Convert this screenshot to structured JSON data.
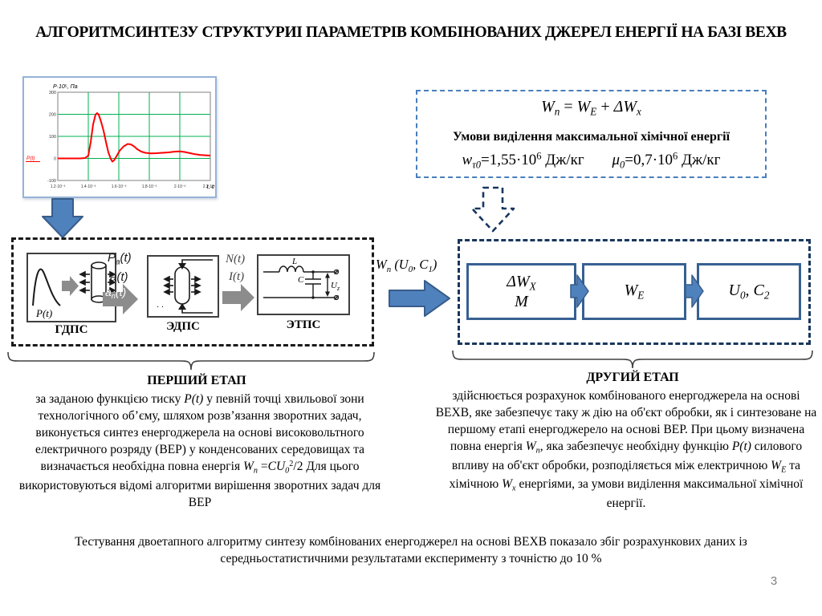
{
  "slide": {
    "title": "АЛГОРИТМСИНТЕЗУ СТРУКТУРИІ ПАРАМЕТРІВ  КОМБІНОВАНИХ ДЖЕРЕЛ ЕНЕРГІЇ НА БАЗІ ВЕХВ",
    "footer": "Тестування двоетапного алгоритму синтезу комбінованих енергоджерел на основі ВЕХВ показало збіг розрахункових даних із середньостатистичними результатами експерименту з точністю до 10 %",
    "page_number": "3"
  },
  "chart_data": {
    "type": "line",
    "title": "",
    "ylabel": "P·10⁵, Па",
    "xlabel": "t, с",
    "x_unit": "10⁻³ с",
    "y_unit": "10⁵ Па",
    "xlim": [
      1.2,
      2.2
    ],
    "ylim": [
      -100,
      300
    ],
    "grid": true,
    "grid_color": "#00B050",
    "xticklabels": [
      "1.2·10⁻³",
      "1.4·10⁻³",
      "1.6·10⁻³",
      "1.8·10⁻³",
      "2·10⁻³",
      "2.2·10⁻³"
    ],
    "yticklabels": [
      "300",
      "200",
      "100",
      "0",
      "-100"
    ],
    "annotation": "P(t)",
    "series": [
      {
        "name": "P(t)",
        "color": "#FF0000",
        "x": [
          1.2,
          1.38,
          1.42,
          1.46,
          1.5,
          1.56,
          1.6,
          1.66,
          1.72,
          1.78,
          1.9,
          1.98,
          2.1,
          2.2
        ],
        "y": [
          0,
          0,
          150,
          205,
          120,
          -15,
          30,
          65,
          40,
          25,
          22,
          30,
          18,
          15
        ]
      }
    ]
  },
  "formula_box": {
    "formula_runs": [
      {
        "t": "W",
        "i": true
      },
      {
        "t": "n",
        "s": "sub",
        "i": true
      },
      {
        "t": " = "
      },
      {
        "t": "W",
        "i": true
      },
      {
        "t": "E",
        "s": "sub",
        "i": true
      },
      {
        "t": " + "
      },
      {
        "t": "ΔW",
        "i": true
      },
      {
        "t": "x",
        "s": "sub",
        "i": true
      }
    ],
    "condition_title": "Умови виділення максимальної хімічної енергії",
    "value1_runs": [
      {
        "t": "w",
        "i": true
      },
      {
        "t": "τ0",
        "s": "sub",
        "i": true
      },
      {
        "t": "=1,55·10"
      },
      {
        "t": "6",
        "s": "sup"
      },
      {
        "t": " Дж/кг"
      }
    ],
    "value2_runs": [
      {
        "t": "μ",
        "i": true
      },
      {
        "t": "0",
        "s": "sub",
        "i": true
      },
      {
        "t": "=0,7·10"
      },
      {
        "t": "6",
        "s": "sup"
      },
      {
        "t": " Дж/кг"
      }
    ]
  },
  "stage1": {
    "heading": "ПЕРШИЙ ЕТАП",
    "paragraph_runs": [
      {
        "t": "за заданою функцією тиску  "
      },
      {
        "t": "P(t)",
        "i": true
      },
      {
        "t": " у певній точці хвильової зони технологічного об’єму, шляхом розв’язання зворотних задач, виконується синтез енергоджерела на основі високовольтного електричного розряду (ВЕР) у конденсованих середовищах та визначається необхідна повна енергія  "
      },
      {
        "t": "W",
        "i": true
      },
      {
        "t": "n",
        "s": "sub",
        "i": true
      },
      {
        "t": " ="
      },
      {
        "t": "CU",
        "i": true
      },
      {
        "t": "0",
        "s": "sub",
        "i": true
      },
      {
        "t": "2",
        "s": "sup"
      },
      {
        "t": "/2 Для цього використовуються відомі алгоритми вирішення зворотних задач для ВЕР"
      }
    ],
    "block1_label": "ГДПС",
    "block2_label": "ЭДПС",
    "block3_label": "ЭТПС",
    "b1_signal": "P(t)",
    "sig_pa_runs": [
      {
        "t": "P",
        "i": true
      },
      {
        "t": "a",
        "s": "sub",
        "i": true
      },
      {
        "t": "(t)",
        "i": true
      }
    ],
    "sig_a_runs": [
      {
        "t": "a(t)",
        "i": true
      }
    ],
    "sig_an_runs": [
      {
        "t": "a",
        "i": true
      },
      {
        "t": "n",
        "s": "sub",
        "i": true
      },
      {
        "t": "(t)",
        "i": true
      }
    ],
    "sig_n_runs": [
      {
        "t": "N(t)",
        "i": true
      }
    ],
    "sig_i_runs": [
      {
        "t": "I(t)",
        "i": true
      }
    ],
    "b2_dots": "· ·",
    "circuit": {
      "l": "L",
      "c": "C",
      "u": "U",
      "u_sub": "z"
    }
  },
  "transfer": {
    "wn_runs": [
      {
        "t": "W",
        "i": true
      },
      {
        "t": "n",
        "s": "sub",
        "i": true
      },
      {
        "t": " (U",
        "i": true
      },
      {
        "t": "0",
        "s": "sub",
        "i": true
      },
      {
        "t": ", C",
        "i": true
      },
      {
        "t": "1",
        "s": "sub",
        "i": true
      },
      {
        "t": ")",
        "i": true
      }
    ]
  },
  "stage2": {
    "heading": "ДРУГИЙ ЕТАП",
    "paragraph_runs": [
      {
        "t": "здійснюється розрахунок комбінованого енергоджерела на основі ВЕХВ, яке забезпечує таку ж дію на об'єкт обробки, як і синтезоване на першому етапі енергоджерело на основі ВЕР. При цьому визначена повна енергія  "
      },
      {
        "t": "W",
        "i": true
      },
      {
        "t": "n",
        "s": "sub",
        "i": true
      },
      {
        "t": ", яка забезпечує необхідну функцію "
      },
      {
        "t": "P(t)",
        "i": true
      },
      {
        "t": " силового впливу на об'єкт обробки, розподіляється між електричною  "
      },
      {
        "t": "W",
        "i": true
      },
      {
        "t": "E",
        "s": "sub",
        "i": true
      },
      {
        "t": "  та хімічною  "
      },
      {
        "t": "W",
        "i": true
      },
      {
        "t": "x",
        "s": "sub",
        "i": true
      },
      {
        "t": "  енергіями, за умови виділення максимальної хімічної енергії."
      }
    ],
    "blockA_line1_runs": [
      {
        "t": "ΔW",
        "i": true
      },
      {
        "t": "X",
        "s": "sub",
        "i": true
      }
    ],
    "blockA_line2_runs": [
      {
        "t": "M",
        "i": true
      }
    ],
    "blockB_runs": [
      {
        "t": "W",
        "i": true
      },
      {
        "t": "E",
        "s": "sub",
        "i": true
      }
    ],
    "blockC_runs": [
      {
        "t": "U",
        "i": true
      },
      {
        "t": "0",
        "s": "sub",
        "i": true
      },
      {
        "t": ", C",
        "i": true
      },
      {
        "t": "2",
        "s": "sub",
        "i": true
      }
    ]
  },
  "colors": {
    "accent_blue": "#4F81BD",
    "arrow_border": "#385D8A",
    "dashed_navy": "#17375D",
    "formula_dash_blue": "#4a7ebb",
    "box_border_blue": "#376092",
    "gray_arrow": "#8C8C8C",
    "grid_green": "#00B050",
    "curve_red": "#FF0000",
    "page_number_gray": "#7f7f7f"
  }
}
